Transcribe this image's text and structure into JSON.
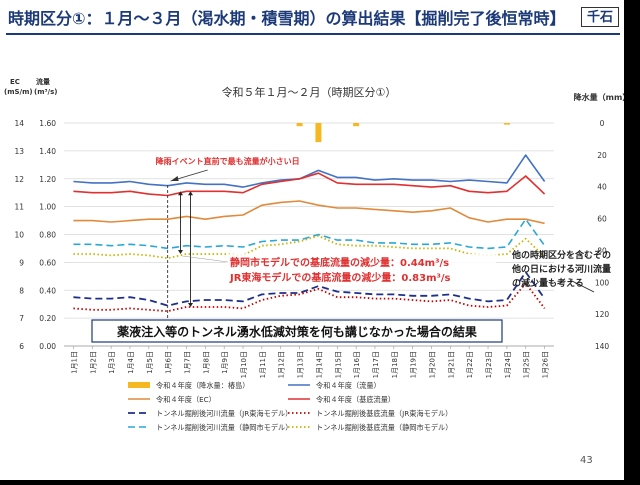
{
  "slide": {
    "title": "時期区分①：１月～３月（渇水期・積雪期）の算出結果【掘削完了後恒常時】",
    "badge": "千石",
    "page_number": "43"
  },
  "chart_data": {
    "type": "line",
    "title": "令和５年１月～２月（時期区分①）",
    "y_left_ec_label": "EC\n(mS/m)",
    "y_left_flow_label": "流量\n(m³/s)",
    "y_right_label": "降水量（mm）",
    "ec_ticks": [
      "6",
      "7",
      "8",
      "9",
      "10",
      "11",
      "12",
      "13",
      "14"
    ],
    "flow_ticks": [
      "0.00",
      "0.20",
      "0.40",
      "0.60",
      "0.80",
      "1.00",
      "1.20",
      "1.40",
      "1.60"
    ],
    "precip_ticks": [
      "0",
      "20",
      "40",
      "60",
      "80",
      "100",
      "120",
      "140"
    ],
    "flow_ylim": [
      0,
      1.6
    ],
    "ec_ylim": [
      6,
      14
    ],
    "precip_ylim": [
      0,
      140
    ],
    "categories": [
      "1月1日",
      "1月2日",
      "1月3日",
      "1月4日",
      "1月5日",
      "1月6日",
      "1月7日",
      "1月8日",
      "1月9日",
      "1月10日",
      "1月11日",
      "1月12日",
      "1月13日",
      "1月14日",
      "1月15日",
      "1月16日",
      "1月17日",
      "1月18日",
      "1月19日",
      "1月20日",
      "1月21日",
      "1月22日",
      "1月23日",
      "1月24日",
      "1月25日",
      "1月26日"
    ],
    "precip": [
      0,
      0,
      0,
      0,
      0,
      0,
      0,
      0,
      0,
      0,
      0,
      0,
      2,
      12,
      0,
      2,
      0,
      0,
      0,
      0,
      0,
      0,
      0,
      1,
      0,
      0
    ],
    "series": [
      {
        "name": "令和４年度（流量）",
        "color": "#4472c4",
        "dash": "",
        "width": 1.6,
        "values": [
          1.18,
          1.17,
          1.17,
          1.18,
          1.16,
          1.15,
          1.17,
          1.16,
          1.16,
          1.14,
          1.17,
          1.19,
          1.2,
          1.26,
          1.21,
          1.21,
          1.19,
          1.2,
          1.19,
          1.19,
          1.18,
          1.19,
          1.18,
          1.17,
          1.37,
          1.18
        ]
      },
      {
        "name": "令和４年度（基底流量）",
        "color": "#e03030",
        "dash": "",
        "width": 1.6,
        "values": [
          1.11,
          1.1,
          1.1,
          1.11,
          1.09,
          1.08,
          1.11,
          1.11,
          1.11,
          1.1,
          1.16,
          1.18,
          1.2,
          1.24,
          1.17,
          1.16,
          1.16,
          1.16,
          1.15,
          1.14,
          1.15,
          1.11,
          1.1,
          1.11,
          1.22,
          1.09
        ]
      },
      {
        "name": "令和４年度（EC）",
        "color": "#e08a3c",
        "dash": "",
        "width": 1.6,
        "values": [
          0.9,
          0.9,
          0.89,
          0.9,
          0.91,
          0.91,
          0.93,
          0.91,
          0.93,
          0.94,
          1.01,
          1.03,
          1.04,
          1.01,
          0.99,
          0.99,
          0.98,
          0.97,
          0.96,
          0.97,
          0.99,
          0.92,
          0.89,
          0.91,
          0.91,
          0.88
        ]
      },
      {
        "name": "トンネル掘削後河川流量（静岡市モデル）",
        "color": "#2aa7d8",
        "dash": "7 4",
        "width": 1.6,
        "values": [
          0.73,
          0.73,
          0.72,
          0.73,
          0.72,
          0.7,
          0.72,
          0.71,
          0.72,
          0.71,
          0.75,
          0.76,
          0.76,
          0.8,
          0.76,
          0.76,
          0.74,
          0.74,
          0.73,
          0.73,
          0.74,
          0.71,
          0.7,
          0.71,
          0.91,
          0.72
        ]
      },
      {
        "name": "トンネル掘削後基底流量（静岡市モデル）",
        "color": "#c8b400",
        "dash": "1.5 2.5",
        "width": 1.8,
        "values": [
          0.66,
          0.66,
          0.65,
          0.66,
          0.65,
          0.63,
          0.66,
          0.66,
          0.66,
          0.65,
          0.72,
          0.73,
          0.75,
          0.79,
          0.73,
          0.72,
          0.72,
          0.71,
          0.7,
          0.7,
          0.7,
          0.66,
          0.65,
          0.66,
          0.77,
          0.64
        ]
      },
      {
        "name": "トンネル掘削後河川流量（JR東海モデル）",
        "color": "#1f2f8c",
        "dash": "7 4",
        "width": 1.8,
        "values": [
          0.35,
          0.34,
          0.34,
          0.35,
          0.33,
          0.29,
          0.32,
          0.33,
          0.33,
          0.32,
          0.37,
          0.38,
          0.38,
          0.43,
          0.39,
          0.38,
          0.37,
          0.37,
          0.36,
          0.36,
          0.37,
          0.34,
          0.32,
          0.33,
          0.53,
          0.34
        ]
      },
      {
        "name": "トンネル掘削後基底流量（JR東海モデル）",
        "color": "#c00000",
        "dash": "1.5 2.5",
        "width": 1.8,
        "values": [
          0.27,
          0.26,
          0.26,
          0.27,
          0.26,
          0.25,
          0.28,
          0.28,
          0.28,
          0.27,
          0.33,
          0.36,
          0.37,
          0.41,
          0.35,
          0.35,
          0.34,
          0.34,
          0.33,
          0.32,
          0.33,
          0.29,
          0.28,
          0.29,
          0.45,
          0.27
        ]
      }
    ],
    "precip_legend": "令和４年度（降水量：椿島）",
    "precip_color": "#f5b820",
    "annotations": {
      "event_label": "降雨イベント直前で最も流量が小さい日",
      "shizuoka_text": "静岡市モデルでの基底流量の減少量：",
      "shizuoka_value": "0.44m³/s",
      "jr_text": "JR東海モデルでの基底流量の減少量：",
      "jr_value": "0.83m³/s",
      "right_note": "他の時期区分を含むその他の日における河川流量の減少量も考える",
      "bottom_box": "薬液注入等のトンネル湧水低減対策を何も講じなかった場合の結果"
    }
  }
}
